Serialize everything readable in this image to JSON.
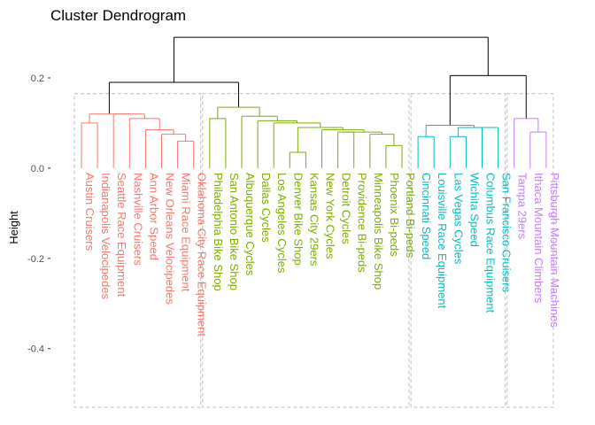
{
  "chart_data": {
    "type": "dendrogram",
    "title": "Cluster Dendrogram",
    "ylabel": "Height",
    "xlabel": "",
    "ylim": [
      -0.53,
      0.3
    ],
    "yticks": [
      0.2,
      0.0,
      -0.2,
      -0.4
    ],
    "ytick_labels": [
      "0.2",
      "0.0",
      "-0.2",
      "-0.4"
    ],
    "grid": false,
    "label_offset": 0.01,
    "label_line_spacing": 0.05,
    "root": {
      "height": 0.29,
      "children": [
        {
          "height": 0.19,
          "children": [
            {
              "height": 0.12,
              "color": "#F8766D",
              "children": [
                {
                  "height": 0.1,
                  "children": [
                    "Austin Cruisers",
                    "Indianapolis Velocipedes"
                  ]
                },
                {
                  "height": 0.12,
                  "children": [
                    "Seattle Race Equipment",
                    {
                      "height": 0.11,
                      "children": [
                        "Nashville Cruisers",
                        {
                          "height": 0.085,
                          "children": [
                            "Ann Arbor Speed",
                            {
                              "height": 0.075,
                              "children": [
                                "New Orleans Velocipedes",
                                {
                                  "height": 0.06,
                                  "children": [
                                    "Miami Race Equipment",
                                    "Oklahoma City Race Equipment"
                                  ]
                                }
                              ]
                            }
                          ]
                        }
                      ]
                    }
                  ]
                }
              ]
            },
            {
              "height": 0.135,
              "color": "#7CAE00",
              "children": [
                {
                  "height": 0.11,
                  "children": [
                    "Philadelphia Bike Shop",
                    "San Antonio Bike Shop"
                  ]
                },
                {
                  "height": 0.115,
                  "children": [
                    "Albuquerque Cycles",
                    {
                      "height": 0.105,
                      "children": [
                        "Dallas Cycles",
                        {
                          "height": 0.1,
                          "children": [
                            "Los Angeles Cycles",
                            {
                              "height": 0.09,
                              "children": [
                                {
                                  "height": 0.035,
                                  "children": [
                                    "Denver Bike Shop",
                                    "Kansas City 29ers"
                                  ]
                                },
                                {
                                  "height": 0.085,
                                  "children": [
                                    "New York Cycles",
                                    {
                                      "height": 0.08,
                                      "children": [
                                        {
                                          "height": 0.08,
                                          "children": [
                                            "Detroit Cycles",
                                            "Providence Bi-peds"
                                          ]
                                        },
                                        {
                                          "height": 0.075,
                                          "children": [
                                            "Minneapolis Bike Shop",
                                            {
                                              "height": 0.05,
                                              "children": [
                                                "Phoenix Bi-peds",
                                                "Portland Bi-peds"
                                              ]
                                            }
                                          ]
                                        }
                                      ]
                                    }
                                  ]
                                }
                              ]
                            }
                          ]
                        }
                      ]
                    }
                  ]
                }
              ]
            }
          ]
        },
        {
          "height": 0.205,
          "children": [
            {
              "height": 0.095,
              "color": "#00BFC4",
              "children": [
                {
                  "height": 0.07,
                  "children": [
                    "Cincinnati Speed",
                    "Louisville Race Equipment"
                  ]
                },
                {
                  "height": 0.09,
                  "children": [
                    {
                      "height": 0.07,
                      "children": [
                        "Las Vegas Cycles",
                        "Wichita Speed"
                      ]
                    },
                    {
                      "height": 0.09,
                      "children": [
                        "Columbus Race Equipment",
                        "San Francisco Cruisers"
                      ]
                    }
                  ]
                }
              ]
            },
            {
              "height": 0.11,
              "color": "#C77CFF",
              "children": [
                "Tampa 29ers",
                {
                  "height": 0.08,
                  "children": [
                    "Ithaca Mountain Climbers",
                    "Pittsburgh Mountain Machines"
                  ]
                }
              ]
            }
          ]
        }
      ]
    },
    "cluster_boxes": [
      {
        "color": "#F8766D",
        "first_leaf": 1,
        "last_leaf": 8
      },
      {
        "color": "#7CAE00",
        "first_leaf": 9,
        "last_leaf": 21
      },
      {
        "color": "#00BFC4",
        "first_leaf": 22,
        "last_leaf": 27
      },
      {
        "color": "#C77CFF",
        "first_leaf": 28,
        "last_leaf": 30
      }
    ],
    "cluster_box_top": 0.165,
    "cluster_box_bottom": -0.53,
    "upper_branch_color": "#000000",
    "box_color": "#BEBEBE"
  }
}
